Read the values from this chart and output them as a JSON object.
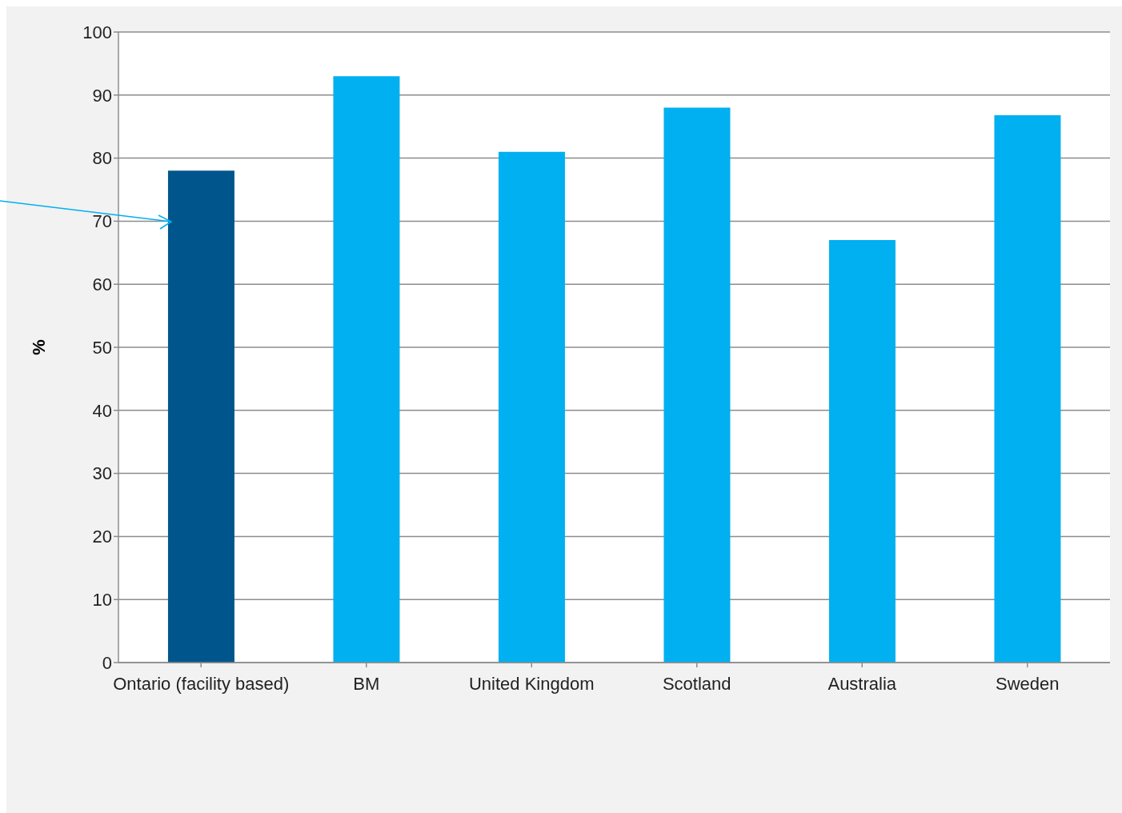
{
  "chart_data": {
    "type": "bar",
    "ylabel": "%",
    "categories": [
      "Ontario (facility based)",
      "BM",
      "United Kingdom",
      "Scotland",
      "Australia",
      "Sweden"
    ],
    "values": [
      78,
      93,
      81,
      88,
      67,
      86.8
    ],
    "colors": [
      "#00568c",
      "#00b0f0",
      "#00b0f0",
      "#00b0f0",
      "#00b0f0",
      "#00b0f0"
    ],
    "ylim": [
      0,
      100
    ],
    "yticks": [
      0,
      10,
      20,
      30,
      40,
      50,
      60,
      70,
      80,
      90,
      100
    ],
    "grid": "y"
  }
}
